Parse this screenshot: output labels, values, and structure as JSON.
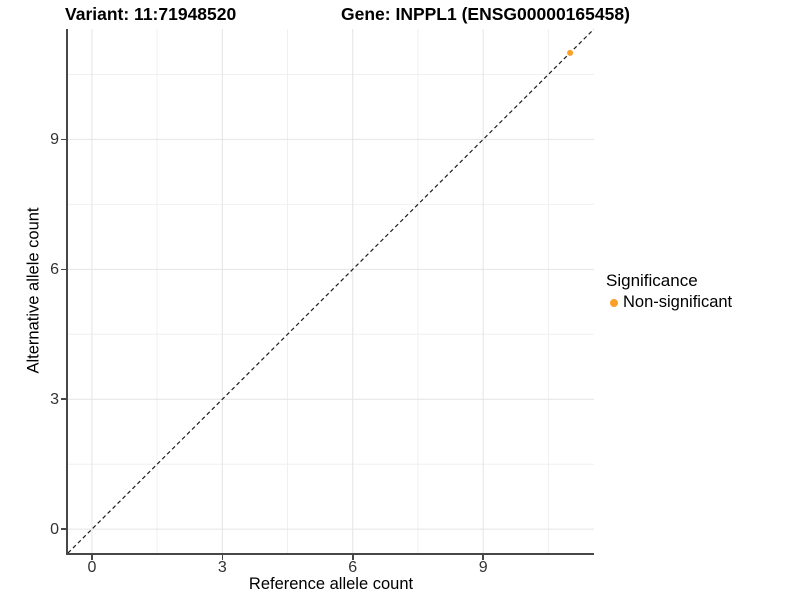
{
  "chart_data": {
    "type": "scatter",
    "titles": [
      "Variant: 11:71948520",
      "Gene: INPPL1 (ENSG00000165458)"
    ],
    "xlabel": "Reference allele count",
    "ylabel": "Alternative allele count",
    "xlim": [
      -0.55,
      11.55
    ],
    "ylim": [
      -0.55,
      11.55
    ],
    "x_ticks": [
      0,
      3,
      6,
      9
    ],
    "y_ticks": [
      0,
      3,
      6,
      9
    ],
    "x_minor_ticks": [
      1.5,
      4.5,
      7.5,
      10.5
    ],
    "y_minor_ticks": [
      1.5,
      4.5,
      7.5,
      10.5
    ],
    "grid": "major and minor gridlines, white background",
    "series": [
      {
        "name": "Non-significant",
        "color": "#F9A029",
        "points": [
          {
            "x": 11,
            "y": 11
          }
        ]
      }
    ],
    "identity_line": {
      "style": "dashed",
      "color": "#1c1c1c",
      "from": [
        -0.55,
        -0.55
      ],
      "to": [
        11.55,
        11.55
      ]
    },
    "legend": {
      "title": "Significance",
      "position": "right",
      "entries": [
        {
          "label": "Non-significant",
          "color": "#F9A029"
        }
      ]
    }
  },
  "style": {
    "grid_major": "#e4e4e4",
    "grid_minor": "#f0f0f0",
    "axis_line": "#474747",
    "tick_mark": "#474747",
    "point_radius": 3,
    "legend_dot": "#F9A029"
  }
}
